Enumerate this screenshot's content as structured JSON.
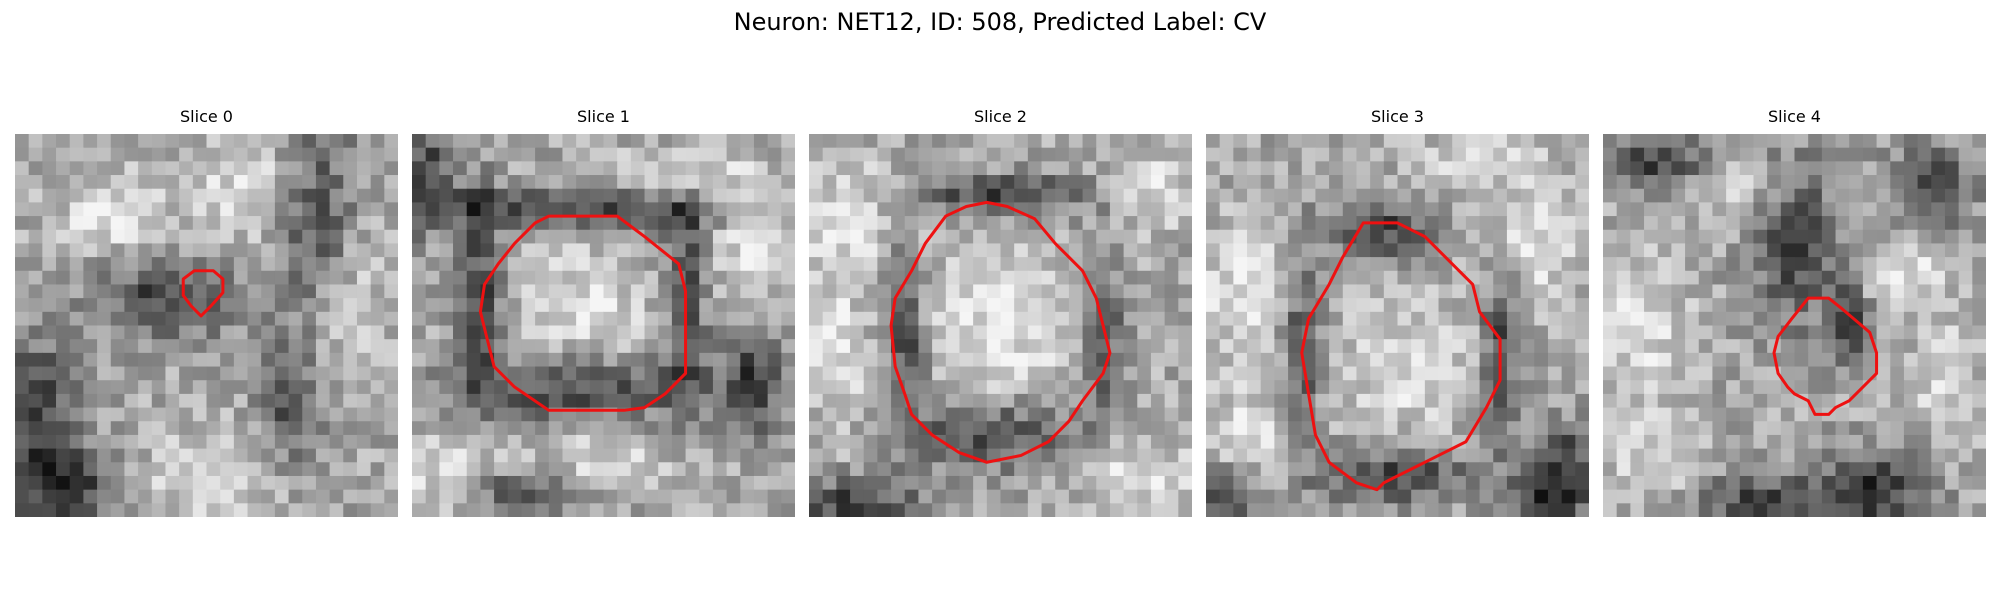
{
  "figure": {
    "title": "Neuron: NET12, ID: 508, Predicted Label: CV",
    "contour_color": "#ee1111"
  },
  "panels": [
    {
      "title": "Slice 0",
      "seed": 17,
      "grid": 28,
      "contour": [
        [
          13.1,
          10.0
        ],
        [
          14.5,
          10.0
        ],
        [
          15.2,
          10.6
        ],
        [
          15.2,
          11.6
        ],
        [
          14.3,
          12.6
        ],
        [
          13.6,
          13.3
        ],
        [
          12.9,
          12.6
        ],
        [
          12.3,
          11.8
        ],
        [
          12.3,
          10.6
        ]
      ],
      "dark_blobs": [
        [
          1.5,
          20.5,
          3,
          6
        ],
        [
          4,
          26,
          4,
          3
        ],
        [
          22,
          6,
          3,
          8
        ],
        [
          11,
          12,
          5,
          3
        ],
        [
          20,
          20,
          2,
          4
        ]
      ],
      "light_blobs": [
        [
          18,
          4,
          5,
          4
        ],
        [
          24,
          12,
          3,
          5
        ],
        [
          7,
          6,
          4,
          3
        ],
        [
          14,
          25,
          5,
          3
        ]
      ]
    },
    {
      "title": "Slice 1",
      "seed": 29,
      "grid": 28,
      "contour": [
        [
          10,
          6
        ],
        [
          15,
          6
        ],
        [
          17,
          7.5
        ],
        [
          19.5,
          9.5
        ],
        [
          20,
          11.5
        ],
        [
          20,
          17.5
        ],
        [
          18.5,
          19
        ],
        [
          17,
          20
        ],
        [
          15.5,
          20.2
        ],
        [
          10,
          20.2
        ],
        [
          7.5,
          18.5
        ],
        [
          6,
          17
        ],
        [
          5.5,
          15
        ],
        [
          5,
          13
        ],
        [
          5.3,
          11
        ],
        [
          6.3,
          9.5
        ],
        [
          7.5,
          8
        ],
        [
          9,
          6.5
        ]
      ],
      "dark_blobs": [
        [
          12,
          18.5,
          9,
          2.5
        ],
        [
          12,
          5.5,
          12,
          1.5
        ],
        [
          5,
          12,
          1.5,
          8
        ],
        [
          20,
          12,
          1.5,
          8
        ],
        [
          1,
          3,
          2,
          4
        ],
        [
          8,
          26,
          4,
          2
        ],
        [
          25,
          18,
          2,
          4
        ]
      ],
      "light_blobs": [
        [
          12.5,
          13,
          5,
          5
        ],
        [
          20,
          3,
          5,
          2
        ],
        [
          13,
          24,
          6,
          2
        ],
        [
          25,
          8,
          3,
          4
        ],
        [
          3,
          25,
          4,
          3
        ]
      ]
    },
    {
      "title": "Slice 2",
      "seed": 43,
      "grid": 28,
      "contour": [
        [
          10,
          6
        ],
        [
          11.5,
          5.3
        ],
        [
          13,
          5
        ],
        [
          14.5,
          5.3
        ],
        [
          16.5,
          6.2
        ],
        [
          18,
          8
        ],
        [
          20,
          10
        ],
        [
          21,
          12
        ],
        [
          21.5,
          14
        ],
        [
          22,
          16
        ],
        [
          21.5,
          17.5
        ],
        [
          20,
          19.5
        ],
        [
          19,
          21
        ],
        [
          17.5,
          22.5
        ],
        [
          15.5,
          23.5
        ],
        [
          13,
          24
        ],
        [
          11,
          23.3
        ],
        [
          9,
          22
        ],
        [
          7.5,
          20.5
        ],
        [
          7,
          19
        ],
        [
          6.3,
          17
        ],
        [
          6,
          14
        ],
        [
          6.3,
          12
        ],
        [
          7.5,
          10
        ],
        [
          8.5,
          8
        ]
      ],
      "dark_blobs": [
        [
          13.5,
          22,
          6,
          2.5
        ],
        [
          7,
          15,
          1.5,
          7
        ],
        [
          21.5,
          15,
          1.5,
          6
        ],
        [
          14,
          4.5,
          7,
          1.5
        ],
        [
          3,
          27,
          5,
          2
        ]
      ],
      "light_blobs": [
        [
          14,
          14,
          6,
          6
        ],
        [
          3,
          6,
          4,
          4
        ],
        [
          25,
          4,
          3,
          3
        ],
        [
          24,
          25,
          4,
          3
        ],
        [
          2,
          16,
          2,
          6
        ]
      ]
    },
    {
      "title": "Slice 3",
      "seed": 61,
      "grid": 28,
      "contour": [
        [
          11.5,
          6.5
        ],
        [
          14,
          6.5
        ],
        [
          16,
          7.5
        ],
        [
          19.5,
          11
        ],
        [
          20,
          13
        ],
        [
          21.5,
          15
        ],
        [
          21.5,
          18
        ],
        [
          20.5,
          20
        ],
        [
          19,
          22.5
        ],
        [
          17,
          23.5
        ],
        [
          15,
          24.5
        ],
        [
          13,
          25.5
        ],
        [
          12.5,
          26
        ],
        [
          11,
          25.5
        ],
        [
          9,
          24
        ],
        [
          8,
          22
        ],
        [
          7.5,
          19
        ],
        [
          7,
          16
        ],
        [
          7.5,
          13.5
        ],
        [
          9,
          11
        ],
        [
          10,
          9
        ]
      ],
      "dark_blobs": [
        [
          13,
          7,
          4,
          2
        ],
        [
          7,
          16,
          1.5,
          7
        ],
        [
          21.5,
          16,
          1.5,
          6
        ],
        [
          14,
          25,
          6,
          2
        ],
        [
          1,
          27,
          2,
          3
        ],
        [
          25,
          27,
          3,
          2
        ],
        [
          26,
          24,
          2,
          3
        ]
      ],
      "light_blobs": [
        [
          15,
          17,
          5,
          5
        ],
        [
          3,
          12,
          4,
          5
        ],
        [
          24,
          8,
          3,
          4
        ],
        [
          3,
          22,
          4,
          3
        ],
        [
          20,
          2,
          4,
          2
        ]
      ]
    },
    {
      "title": "Slice 4",
      "seed": 83,
      "grid": 28,
      "contour": [
        [
          15,
          12
        ],
        [
          16.5,
          12
        ],
        [
          17.5,
          12.8
        ],
        [
          19.5,
          14.5
        ],
        [
          20,
          16
        ],
        [
          20,
          17.5
        ],
        [
          19,
          18.5
        ],
        [
          18,
          19.5
        ],
        [
          17,
          20
        ],
        [
          16.5,
          20.5
        ],
        [
          15.5,
          20.5
        ],
        [
          15,
          19.5
        ],
        [
          14,
          19
        ],
        [
          13.5,
          18.5
        ],
        [
          12.8,
          17.5
        ],
        [
          12.5,
          16
        ],
        [
          12.8,
          14.8
        ],
        [
          13.8,
          13.5
        ]
      ],
      "dark_blobs": [
        [
          14,
          8,
          3,
          6
        ],
        [
          18,
          14,
          1.5,
          3
        ],
        [
          12,
          27,
          6,
          2
        ],
        [
          20,
          26,
          4,
          3
        ],
        [
          4,
          2,
          4,
          2
        ],
        [
          24,
          4,
          3,
          3
        ]
      ],
      "light_blobs": [
        [
          3,
          14,
          3,
          6
        ],
        [
          4,
          24,
          3,
          3
        ],
        [
          22,
          10,
          3,
          3
        ],
        [
          10,
          4,
          3,
          2
        ],
        [
          25,
          18,
          2,
          4
        ]
      ]
    }
  ]
}
